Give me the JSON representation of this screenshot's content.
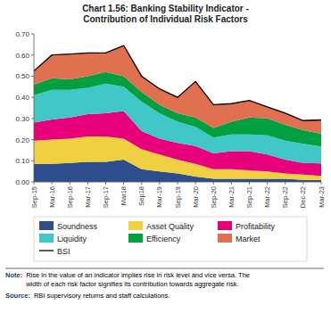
{
  "chart_data": {
    "type": "area",
    "title": "Chart 1.56: Banking Stability Indicator -\nContribution of Individual Risk Factors",
    "categories": [
      "Sep-15",
      "Mar-16",
      "Sep-16",
      "Mar-17",
      "Sep-17",
      "Mar18",
      "Sep18",
      "Mar-19",
      "Sep-19",
      "Mar-20",
      "Sep-20",
      "Mar-21",
      "Sep-21",
      "Mar-22",
      "Sep-22",
      "Dec-22",
      "Mar-23"
    ],
    "series": [
      {
        "name": "Soundness",
        "color": "#2e4d8c",
        "values": [
          0.085,
          0.085,
          0.09,
          0.095,
          0.095,
          0.105,
          0.06,
          0.05,
          0.04,
          0.025,
          0.015,
          0.015,
          0.015,
          0.015,
          0.015,
          0.01,
          0.008
        ]
      },
      {
        "name": "Asset Quality",
        "color": "#f0d040",
        "values": [
          0.11,
          0.115,
          0.115,
          0.12,
          0.12,
          0.1,
          0.095,
          0.08,
          0.065,
          0.06,
          0.045,
          0.045,
          0.04,
          0.035,
          0.025,
          0.025,
          0.02
        ]
      },
      {
        "name": "Profitability",
        "color": "#e8007a",
        "values": [
          0.085,
          0.095,
          0.1,
          0.105,
          0.11,
          0.13,
          0.085,
          0.075,
          0.08,
          0.085,
          0.075,
          0.085,
          0.09,
          0.08,
          0.065,
          0.055,
          0.06
        ]
      },
      {
        "name": "Liquidity",
        "color": "#40c8c8",
        "values": [
          0.13,
          0.14,
          0.13,
          0.125,
          0.14,
          0.115,
          0.14,
          0.12,
          0.1,
          0.09,
          0.075,
          0.08,
          0.08,
          0.09,
          0.09,
          0.09,
          0.08
        ]
      },
      {
        "name": "Efficiency",
        "color": "#00a040",
        "values": [
          0.05,
          0.055,
          0.05,
          0.055,
          0.055,
          0.05,
          0.045,
          0.04,
          0.04,
          0.045,
          0.045,
          0.06,
          0.08,
          0.08,
          0.075,
          0.065,
          0.06
        ]
      },
      {
        "name": "Market",
        "color": "#e07050",
        "values": [
          0.065,
          0.11,
          0.12,
          0.11,
          0.09,
          0.145,
          0.075,
          0.075,
          0.075,
          0.17,
          0.11,
          0.085,
          0.08,
          0.055,
          0.055,
          0.045,
          0.065
        ]
      },
      {
        "name": "BSI",
        "type": "line",
        "color": "#000000",
        "values": [
          0.525,
          0.6,
          0.605,
          0.61,
          0.61,
          0.645,
          0.5,
          0.44,
          0.4,
          0.475,
          0.365,
          0.37,
          0.385,
          0.355,
          0.325,
          0.29,
          0.293
        ]
      }
    ],
    "stacked": true,
    "ylim": [
      0.0,
      0.7
    ],
    "yticks": [
      {
        "value": 0.0,
        "label": "0.00"
      },
      {
        "value": 0.1,
        "label": "0.10"
      },
      {
        "value": 0.2,
        "label": "0.20"
      },
      {
        "value": 0.3,
        "label": "0.30"
      },
      {
        "value": 0.4,
        "label": "0.40"
      },
      {
        "value": 0.5,
        "label": "0.50"
      },
      {
        "value": 0.6,
        "label": "0.60"
      },
      {
        "value": 0.7,
        "label": "0.70"
      }
    ],
    "grid": false,
    "legend": "bottom",
    "annotations": [
      "Note:",
      "Rise in the value of an indicator implies rise in risk level and vice versa. The\nwidth of each risk factor signifies its contribution towards aggregate risk.",
      "Source:",
      "RBI supervisory returns and staff calculations."
    ]
  }
}
